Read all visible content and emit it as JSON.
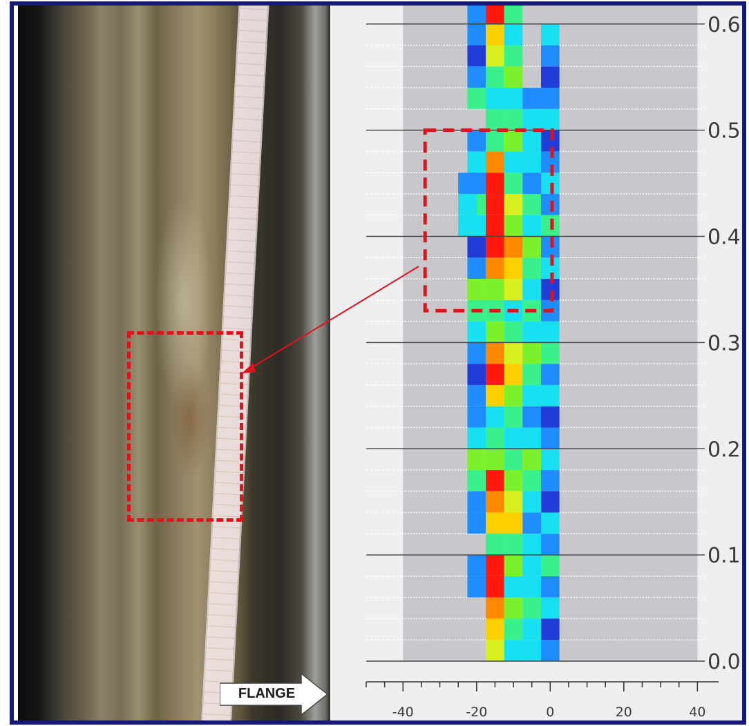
{
  "photo": {
    "description_icon": "wheel-tread-photo",
    "flange_label": "FLANGE"
  },
  "colors": {
    "frame": "#141a7a",
    "highlight_box": "#e0131b",
    "plot_bg": "#c8c8cc",
    "chart_bg": "#efeff1",
    "scale": [
      "#1f3cd6",
      "#1f8cff",
      "#18e0f0",
      "#39f08a",
      "#7cf02a",
      "#d8f020",
      "#ffd000",
      "#ff8a00",
      "#ff1a10"
    ]
  },
  "chart_data": {
    "type": "heatmap",
    "title": "",
    "xlabel": "",
    "ylabel": "",
    "xlim": [
      -50,
      42
    ],
    "ylim": [
      0.0,
      0.62
    ],
    "xticks": [
      -40,
      -20,
      0,
      20,
      40
    ],
    "yticks": [
      0.0,
      0.1,
      0.2,
      0.3,
      0.4,
      0.5,
      0.6
    ],
    "ytick_labels": [
      "0.0",
      "0.1",
      "0.2",
      "0.3",
      "0.4",
      "0.5",
      "0.6"
    ],
    "xtick_labels": [
      "-40",
      "-20",
      "0",
      "20",
      "40"
    ],
    "plot_range": [
      -40,
      40
    ],
    "columns_x": [
      -20,
      -15,
      -10,
      -5,
      0
    ],
    "column_width": 5,
    "row_height": 0.02,
    "columns": [
      {
        "x": -20,
        "cells": [
          [
            0.2,
            2
          ],
          [
            0.22,
            1
          ],
          [
            0.24,
            1
          ],
          [
            0.26,
            0
          ],
          [
            0.28,
            1
          ],
          [
            0.3,
            2
          ],
          [
            0.32,
            3
          ],
          [
            0.34,
            4
          ],
          [
            0.36,
            1
          ],
          [
            0.38,
            0
          ],
          [
            0.4,
            2
          ],
          [
            0.42,
            3
          ],
          [
            0.44,
            1
          ],
          [
            0.46,
            2
          ],
          [
            0.48,
            1
          ],
          [
            0.52,
            3
          ],
          [
            0.54,
            1
          ],
          [
            0.56,
            0
          ],
          [
            0.58,
            1
          ],
          [
            0.6,
            1
          ],
          [
            0.12,
            1
          ],
          [
            0.14,
            1
          ],
          [
            0.16,
            3
          ],
          [
            0.18,
            4
          ],
          [
            0.06,
            1
          ],
          [
            0.08,
            1
          ]
        ]
      },
      {
        "x": -15,
        "cells": [
          [
            0.0,
            5
          ],
          [
            0.02,
            6
          ],
          [
            0.04,
            7
          ],
          [
            0.06,
            8
          ],
          [
            0.08,
            8
          ],
          [
            0.1,
            3
          ],
          [
            0.12,
            6
          ],
          [
            0.14,
            7
          ],
          [
            0.16,
            8
          ],
          [
            0.18,
            4
          ],
          [
            0.2,
            3
          ],
          [
            0.22,
            2
          ],
          [
            0.24,
            6
          ],
          [
            0.26,
            8
          ],
          [
            0.28,
            7
          ],
          [
            0.3,
            4
          ],
          [
            0.32,
            3
          ],
          [
            0.34,
            4
          ],
          [
            0.36,
            7
          ],
          [
            0.38,
            8
          ],
          [
            0.4,
            8
          ],
          [
            0.42,
            8
          ],
          [
            0.44,
            8
          ],
          [
            0.46,
            7
          ],
          [
            0.48,
            3
          ],
          [
            0.5,
            3
          ],
          [
            0.52,
            2
          ],
          [
            0.54,
            3
          ],
          [
            0.56,
            5
          ],
          [
            0.58,
            6
          ],
          [
            0.6,
            8
          ]
        ]
      },
      {
        "x": -10,
        "cells": [
          [
            0.0,
            2
          ],
          [
            0.02,
            3
          ],
          [
            0.04,
            4
          ],
          [
            0.06,
            2
          ],
          [
            0.08,
            4
          ],
          [
            0.1,
            3
          ],
          [
            0.12,
            6
          ],
          [
            0.14,
            5
          ],
          [
            0.16,
            4
          ],
          [
            0.18,
            3
          ],
          [
            0.2,
            2
          ],
          [
            0.22,
            3
          ],
          [
            0.24,
            4
          ],
          [
            0.26,
            6
          ],
          [
            0.28,
            5
          ],
          [
            0.3,
            3
          ],
          [
            0.32,
            2
          ],
          [
            0.34,
            5
          ],
          [
            0.36,
            6
          ],
          [
            0.38,
            7
          ],
          [
            0.4,
            4
          ],
          [
            0.42,
            5
          ],
          [
            0.44,
            3
          ],
          [
            0.46,
            2
          ],
          [
            0.48,
            4
          ],
          [
            0.5,
            3
          ],
          [
            0.52,
            2
          ],
          [
            0.54,
            4
          ],
          [
            0.56,
            3
          ],
          [
            0.58,
            2
          ],
          [
            0.6,
            3
          ]
        ]
      },
      {
        "x": -5,
        "cells": [
          [
            0.0,
            2
          ],
          [
            0.02,
            2
          ],
          [
            0.04,
            3
          ],
          [
            0.06,
            2
          ],
          [
            0.08,
            2
          ],
          [
            0.1,
            2
          ],
          [
            0.12,
            1
          ],
          [
            0.14,
            2
          ],
          [
            0.16,
            3
          ],
          [
            0.18,
            4
          ],
          [
            0.2,
            2
          ],
          [
            0.22,
            1
          ],
          [
            0.24,
            2
          ],
          [
            0.26,
            3
          ],
          [
            0.28,
            4
          ],
          [
            0.3,
            2
          ],
          [
            0.32,
            3
          ],
          [
            0.34,
            2
          ],
          [
            0.36,
            3
          ],
          [
            0.38,
            4
          ],
          [
            0.4,
            2
          ],
          [
            0.42,
            3
          ],
          [
            0.44,
            1
          ],
          [
            0.46,
            2
          ],
          [
            0.48,
            2
          ],
          [
            0.5,
            2
          ],
          [
            0.52,
            1
          ]
        ]
      },
      {
        "x": 0,
        "cells": [
          [
            0.0,
            1
          ],
          [
            0.02,
            0
          ],
          [
            0.04,
            2
          ],
          [
            0.06,
            1
          ],
          [
            0.08,
            3
          ],
          [
            0.1,
            1
          ],
          [
            0.12,
            2
          ],
          [
            0.14,
            0
          ],
          [
            0.16,
            1
          ],
          [
            0.18,
            2
          ],
          [
            0.2,
            1
          ],
          [
            0.22,
            0
          ],
          [
            0.24,
            2
          ],
          [
            0.26,
            1
          ],
          [
            0.28,
            3
          ],
          [
            0.3,
            2
          ],
          [
            0.32,
            1
          ],
          [
            0.34,
            0
          ],
          [
            0.36,
            2
          ],
          [
            0.38,
            1
          ],
          [
            0.4,
            3
          ],
          [
            0.42,
            1
          ],
          [
            0.44,
            2
          ],
          [
            0.46,
            1
          ],
          [
            0.48,
            0
          ],
          [
            0.5,
            2
          ],
          [
            0.52,
            1
          ],
          [
            0.54,
            0
          ],
          [
            0.56,
            1
          ],
          [
            0.58,
            2
          ]
        ]
      }
    ],
    "extra_cells": [
      {
        "x": -22.5,
        "y": 0.4,
        "level": 2
      },
      {
        "x": -22.5,
        "y": 0.42,
        "level": 2
      },
      {
        "x": -22.5,
        "y": 0.44,
        "level": 1
      }
    ],
    "grid": true,
    "legend": "none"
  }
}
